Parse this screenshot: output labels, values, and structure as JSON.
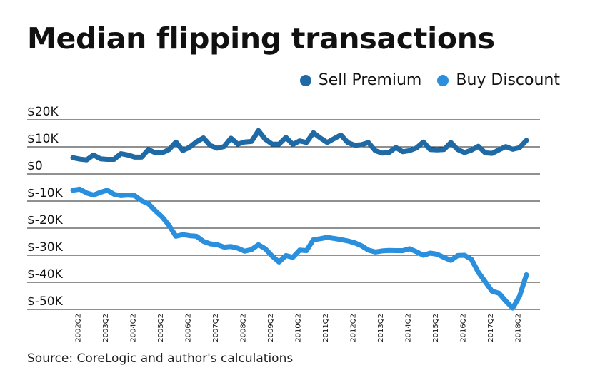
{
  "chart_data": {
    "type": "line",
    "title": "Median flipping transactions",
    "source": "Source: CoreLogic and author's calculations",
    "xlabel": "",
    "ylabel": "",
    "ylim": [
      -50000,
      20000
    ],
    "yticks": [
      20000,
      10000,
      0,
      -10000,
      -20000,
      -30000,
      -40000,
      -50000
    ],
    "ytick_labels": [
      "$20K",
      "$10K",
      "$0",
      "$-10K",
      "$-20K",
      "$-30K",
      "$-40K",
      "$-50K"
    ],
    "grid": true,
    "legend_position": "top-right",
    "xtick_labels": [
      "2002Q2",
      "2003Q2",
      "2004Q2",
      "2005Q2",
      "2006Q2",
      "2007Q2",
      "2008Q2",
      "2009Q2",
      "2010Q2",
      "2011Q2",
      "2012Q2",
      "2013Q2",
      "2014Q2",
      "2015Q2",
      "2016Q2",
      "2017Q2",
      "2018Q2"
    ],
    "x": [
      "2002Q1",
      "2002Q2",
      "2002Q3",
      "2002Q4",
      "2003Q1",
      "2003Q2",
      "2003Q3",
      "2003Q4",
      "2004Q1",
      "2004Q2",
      "2004Q3",
      "2004Q4",
      "2005Q1",
      "2005Q2",
      "2005Q3",
      "2005Q4",
      "2006Q1",
      "2006Q2",
      "2006Q3",
      "2006Q4",
      "2007Q1",
      "2007Q2",
      "2007Q3",
      "2007Q4",
      "2008Q1",
      "2008Q2",
      "2008Q3",
      "2008Q4",
      "2009Q1",
      "2009Q2",
      "2009Q3",
      "2009Q4",
      "2010Q1",
      "2010Q2",
      "2010Q3",
      "2010Q4",
      "2011Q1",
      "2011Q2",
      "2011Q3",
      "2011Q4",
      "2012Q1",
      "2012Q2",
      "2012Q3",
      "2012Q4",
      "2013Q1",
      "2013Q2",
      "2013Q3",
      "2013Q4",
      "2014Q1",
      "2014Q2",
      "2014Q3",
      "2014Q4",
      "2015Q1",
      "2015Q2",
      "2015Q3",
      "2015Q4",
      "2016Q1",
      "2016Q2",
      "2016Q3",
      "2016Q4",
      "2017Q1",
      "2017Q2",
      "2017Q3",
      "2017Q4",
      "2018Q1",
      "2018Q2",
      "2018Q3"
    ],
    "series": [
      {
        "name": "Sell Premium",
        "color": "#1f6aa5",
        "values": [
          6000,
          5500,
          5200,
          7000,
          5600,
          5400,
          5400,
          7500,
          7000,
          6200,
          6200,
          9000,
          7800,
          7800,
          9000,
          11800,
          8600,
          9900,
          11900,
          13300,
          10500,
          9500,
          10100,
          13200,
          11000,
          11800,
          12000,
          16000,
          12800,
          11000,
          11000,
          13500,
          10900,
          12200,
          11600,
          15200,
          13300,
          11600,
          13000,
          14400,
          11600,
          10600,
          10800,
          11600,
          8600,
          7700,
          7900,
          9800,
          8200,
          8600,
          9600,
          11800,
          9000,
          8900,
          9000,
          11600,
          9000,
          7900,
          8800,
          10200,
          7800,
          7600,
          8900,
          10100,
          9100,
          9700,
          12400
        ]
      },
      {
        "name": "Buy Discount",
        "color": "#2a8fdc",
        "values": [
          -6000,
          -5600,
          -7000,
          -7800,
          -6800,
          -6000,
          -7500,
          -8000,
          -7800,
          -8000,
          -9900,
          -11000,
          -13600,
          -15900,
          -19000,
          -23000,
          -22400,
          -22800,
          -23000,
          -24900,
          -25800,
          -26100,
          -27000,
          -26800,
          -27400,
          -28500,
          -27900,
          -26100,
          -27600,
          -30300,
          -32500,
          -30100,
          -30800,
          -28100,
          -28300,
          -24300,
          -23900,
          -23400,
          -23800,
          -24200,
          -24700,
          -25400,
          -26500,
          -28100,
          -28800,
          -28400,
          -28200,
          -28300,
          -28300,
          -27600,
          -28700,
          -30000,
          -29200,
          -29600,
          -30800,
          -31900,
          -30100,
          -30000,
          -31500,
          -36300,
          -39800,
          -43300,
          -44000,
          -46900,
          -49500,
          -45100,
          -37200
        ]
      }
    ]
  }
}
